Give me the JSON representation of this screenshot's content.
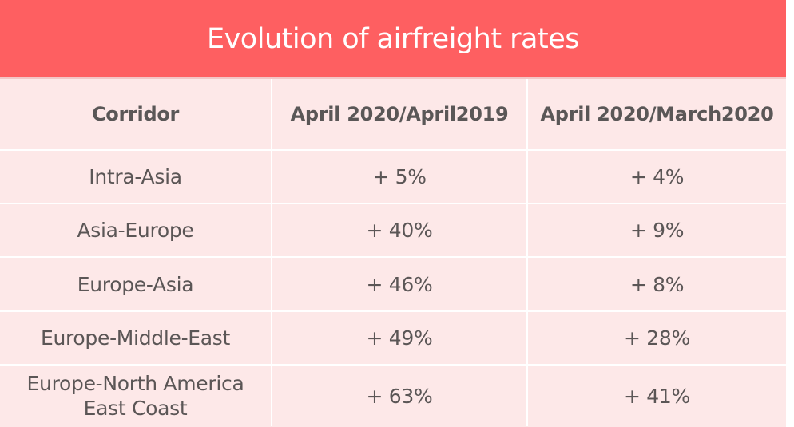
{
  "title": "Evolution of airfreight rates",
  "colors": {
    "title_band": "#fe5f61",
    "title_text": "#ffffff",
    "table_bg": "#fde8e8",
    "grid_lines": "#ffffff",
    "text": "#5b5656"
  },
  "table": {
    "headers": [
      "Corridor",
      "April 2020/April2019",
      "April 2020/March2020"
    ],
    "rows": [
      {
        "corridor": "Intra-Asia",
        "yoy": "+ 5%",
        "mom": "+ 4%"
      },
      {
        "corridor": "Asia-Europe",
        "yoy": "+ 40%",
        "mom": "+ 9%"
      },
      {
        "corridor": "Europe-Asia",
        "yoy": "+ 46%",
        "mom": "+ 8%"
      },
      {
        "corridor": "Europe-Middle-East",
        "yoy": "+ 49%",
        "mom": "+ 28%"
      },
      {
        "corridor_lines": [
          "Europe-North America",
          "East Coast"
        ],
        "corridor": "Europe-North America East Coast",
        "yoy": "+ 63%",
        "mom": "+ 41%"
      }
    ]
  }
}
